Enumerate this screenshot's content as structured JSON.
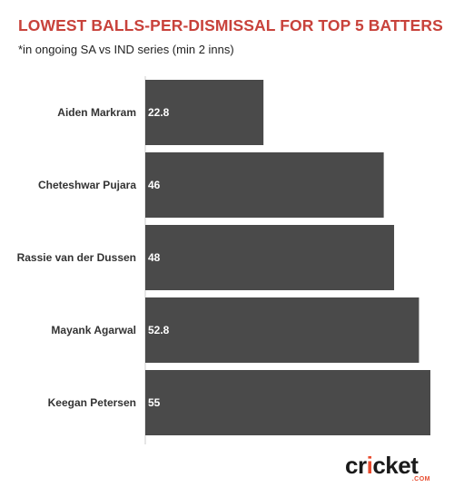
{
  "title": "LOWEST BALLS-PER-DISMISSAL FOR TOP 5 BATTERS",
  "subtitle": "*in ongoing SA vs IND series (min 2 inns)",
  "logo": {
    "brand_prefix": "cr",
    "brand_dot": "i",
    "brand_suffix": "cket",
    "tld": ".COM"
  },
  "colors": {
    "title": "#c8423b",
    "bar": "#4a4a4a",
    "bar_label": "#ffffff",
    "axis_line": "#cccccc"
  },
  "chart_data": {
    "type": "bar",
    "orientation": "horizontal",
    "categories": [
      "Aiden Markram",
      "Cheteshwar Pujara",
      "Rassie van der Dussen",
      "Mayank Agarwal",
      "Keegan Petersen"
    ],
    "values": [
      22.8,
      46,
      48,
      52.8,
      55
    ],
    "data_labels": [
      "22.8",
      "46",
      "48",
      "52.8",
      "55"
    ],
    "xlim": [
      0,
      55
    ],
    "grid": false,
    "legend": "none"
  }
}
